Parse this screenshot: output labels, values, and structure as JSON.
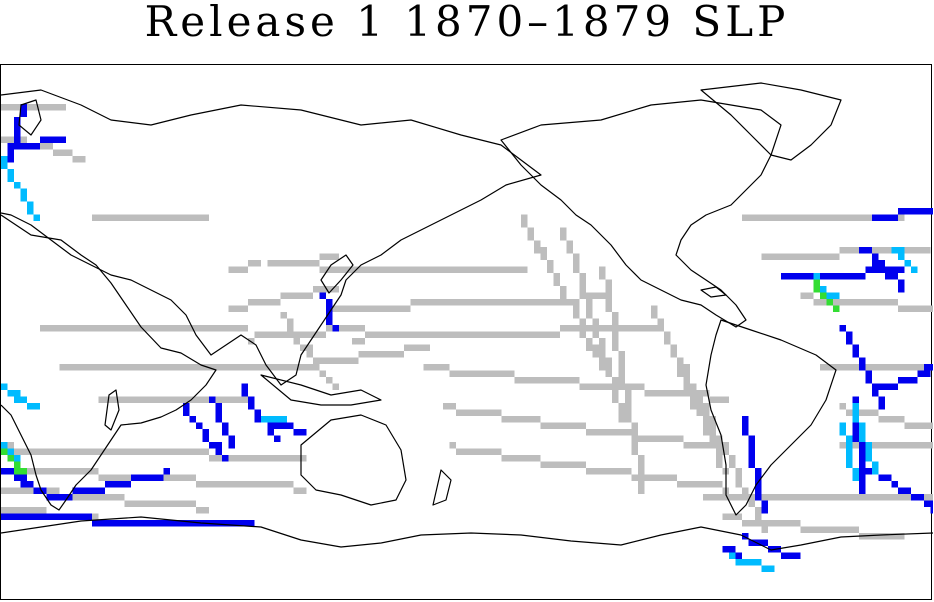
{
  "title": "Release 1 1870–1879 SLP",
  "map": {
    "projection": "equirectangular, centered on 180° (Pacific)",
    "variable": "SLP observation density",
    "colors": {
      "land_outline": "#000000",
      "background": "#ffffff",
      "low_count": "#bdbdbd",
      "medium_count": "#0000ee",
      "high_count": "#00bbff",
      "very_high_count": "#33dd33"
    }
  }
}
